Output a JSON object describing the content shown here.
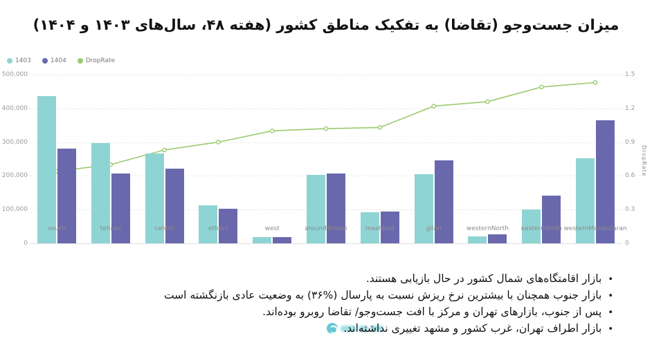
{
  "title": "میزان جست‌وجو (تقاضا) به تفکیک مناطق کشور (هفته ۴۸، سال‌های ۱۴۰۳ و ۱۴۰۴)",
  "colors": {
    "bar_1403": "#8fd4d4",
    "bar_1404": "#6a68ad",
    "drop_rate_line": "#9aca6d",
    "grid": "#e9e9e9",
    "axis_text": "#999999",
    "watermark_teal": "#35b6c9"
  },
  "legend": [
    {
      "label": "1403",
      "color": "#8fd4d4"
    },
    {
      "label": "1404",
      "color": "#6a68ad"
    },
    {
      "label": "DropRate",
      "color": "#9aca6d"
    }
  ],
  "chart_data": {
    "type": "bar",
    "subtype": "grouped bars with secondary-axis line",
    "categories": [
      "south",
      "tehran",
      "center",
      "others",
      "west",
      "aroundTehran",
      "mashhad",
      "gilan",
      "westernNorth",
      "easternNorth",
      "westernMazandaran"
    ],
    "series": [
      {
        "name": "1403",
        "type": "bar",
        "axis": "left",
        "values": [
          437000,
          297000,
          266000,
          112000,
          18000,
          203000,
          92000,
          204000,
          20000,
          100000,
          253000
        ]
      },
      {
        "name": "1404",
        "type": "bar",
        "axis": "left",
        "values": [
          280000,
          206000,
          221000,
          102000,
          18000,
          208000,
          95000,
          246000,
          27000,
          141000,
          365000
        ]
      },
      {
        "name": "DropRate",
        "type": "line",
        "axis": "right",
        "values": [
          0.64,
          0.7,
          0.83,
          0.9,
          1.0,
          1.02,
          1.03,
          1.22,
          1.26,
          1.39,
          1.43
        ]
      }
    ],
    "left_axis": {
      "ticks": [
        "500,000",
        "400,000",
        "300,000",
        "200,000",
        "100,000",
        "0"
      ],
      "min": 0,
      "max": 500000
    },
    "right_axis": {
      "label": "DropRate",
      "ticks": [
        "1.5",
        "1.2",
        "0.9",
        "0.6",
        "0.3",
        "0"
      ],
      "min": 0,
      "max": 1.5
    },
    "grid": "horizontal dashed",
    "legend_position": "top-left"
  },
  "bullets": [
    "بازار اقامتگاه‌های شمال کشور در حال بازیابی هستند.",
    "بازار جنوب همچنان با بیشترین نرخ ریزش نسبت به پارسال ‎(۳۶%)‎ به وضعیت عادی بازنگشته است",
    "پس از جنوب، بازارهای تهران و مرکز با افت جست‌وجو/ تقاضا روبرو بوده‌اند.",
    "بازار اطراف تهران، غرب کشور و مشهد تغییری نداشته‌اند."
  ],
  "bullet_marker": "•"
}
